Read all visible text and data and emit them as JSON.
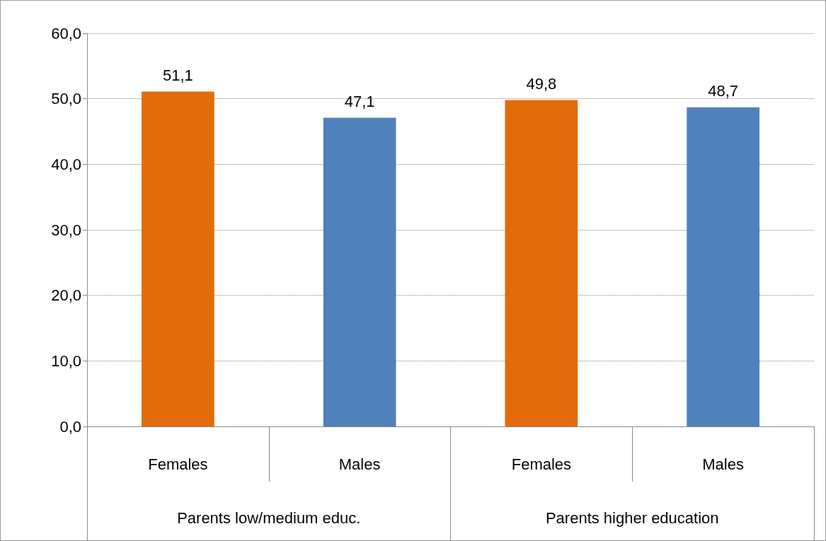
{
  "chart_data": {
    "type": "bar",
    "categories": [
      "Females",
      "Males",
      "Females",
      "Males"
    ],
    "values": [
      51.1,
      47.1,
      49.8,
      48.7
    ],
    "colors": [
      "#e36c0a",
      "#4f81bd",
      "#e36c0a",
      "#4f81bd"
    ],
    "value_labels": [
      "51,1",
      "47,1",
      "49,8",
      "48,7"
    ],
    "ylim": [
      0,
      60
    ],
    "yticks": [
      {
        "value": 0,
        "label": "0,0"
      },
      {
        "value": 10,
        "label": "10,0"
      },
      {
        "value": 20,
        "label": "20,0"
      },
      {
        "value": 30,
        "label": "30,0"
      },
      {
        "value": 40,
        "label": "40,0"
      },
      {
        "value": 50,
        "label": "50,0"
      },
      {
        "value": 60,
        "label": "60,0"
      }
    ],
    "annotations": [
      "Parents low/medium educ.",
      "Parents higher education"
    ],
    "grid": "y"
  }
}
